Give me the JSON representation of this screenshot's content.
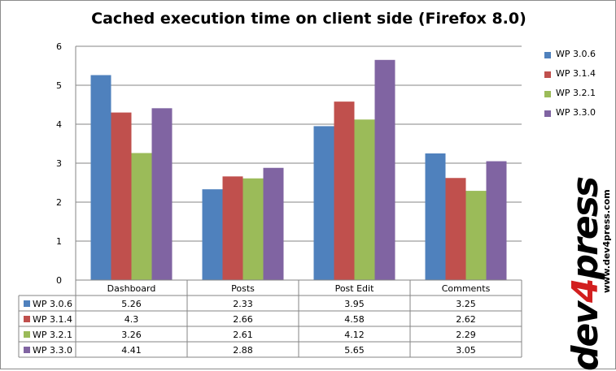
{
  "chart_data": {
    "type": "bar",
    "title": "Cached execution time on client side (Firefox 8.0)",
    "categories": [
      "Dashboard",
      "Posts",
      "Post Edit",
      "Comments"
    ],
    "series": [
      {
        "name": "WP 3.0.6",
        "color": "#4f81bd",
        "values": [
          5.26,
          2.33,
          3.95,
          3.25
        ],
        "labels": [
          "5.26",
          "2.33",
          "3.95",
          "3.25"
        ]
      },
      {
        "name": "WP 3.1.4",
        "color": "#c0504d",
        "values": [
          4.3,
          2.66,
          4.58,
          2.62
        ],
        "labels": [
          "4.3",
          "2.66",
          "4.58",
          "2.62"
        ]
      },
      {
        "name": "WP 3.2.1",
        "color": "#9bbb59",
        "values": [
          3.26,
          2.61,
          4.12,
          2.29
        ],
        "labels": [
          "3.26",
          "2.61",
          "4.12",
          "2.29"
        ]
      },
      {
        "name": "WP 3.3.0",
        "color": "#8064a2",
        "values": [
          4.41,
          2.88,
          5.65,
          3.05
        ],
        "labels": [
          "4.41",
          "2.88",
          "5.65",
          "3.05"
        ]
      }
    ],
    "ylim": [
      0,
      6
    ],
    "y_ticks": [
      "0",
      "1",
      "2",
      "3",
      "4",
      "5",
      "6"
    ],
    "grid": true,
    "legend_position": "right",
    "data_table": true
  },
  "watermark": {
    "brand_prefix": "dev",
    "brand_digit": "4",
    "brand_suffix": "press",
    "url": "www.dev4press.com"
  }
}
